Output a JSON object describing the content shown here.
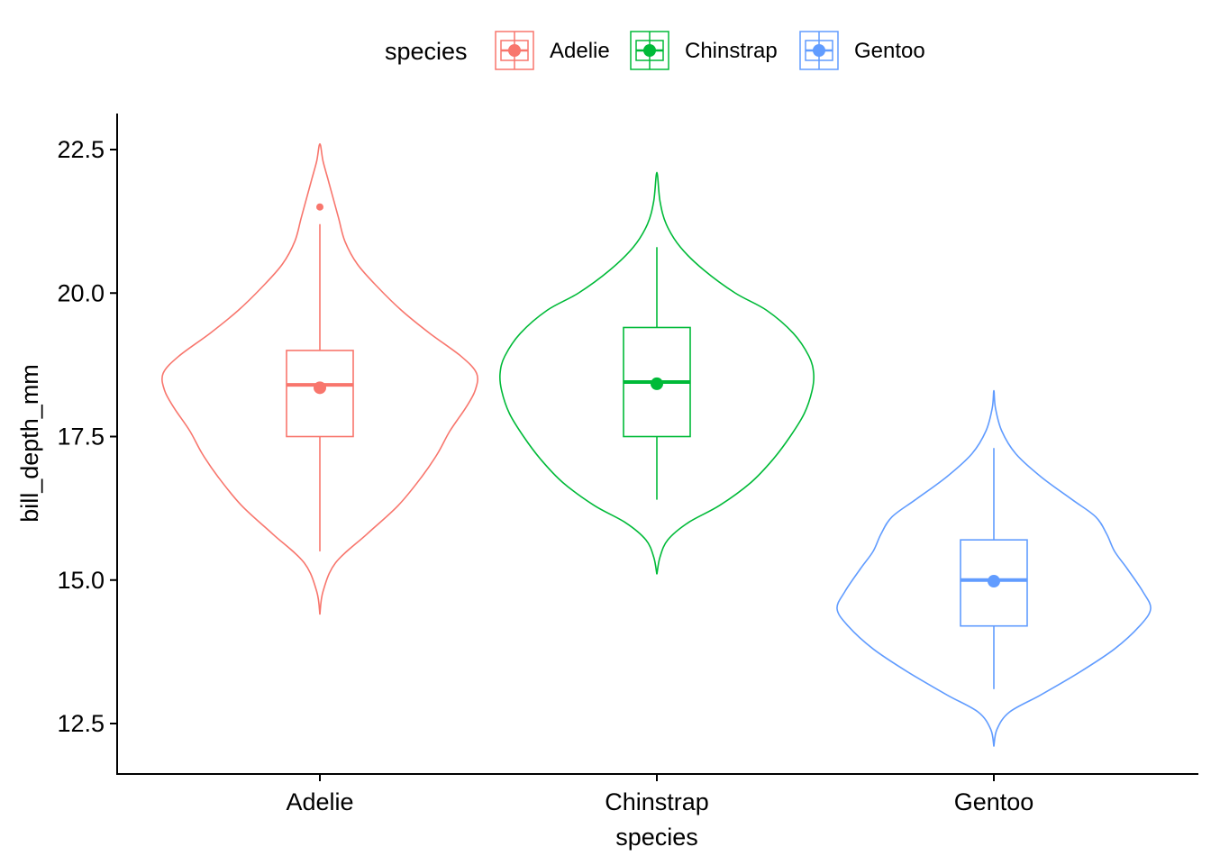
{
  "chart_data": {
    "type": "violin",
    "xlabel": "species",
    "ylabel": "bill_depth_mm",
    "ylim": [
      12.0,
      23.0
    ],
    "yticks": [
      12.5,
      15.0,
      17.5,
      20.0,
      22.5
    ],
    "ytick_labels": [
      "12.5",
      "15.0",
      "17.5",
      "20.0",
      "22.5"
    ],
    "categories": [
      "Adelie",
      "Chinstrap",
      "Gentoo"
    ],
    "legend": {
      "title": "species",
      "position": "top"
    },
    "grid": false,
    "series": [
      {
        "name": "Adelie",
        "color": "#F8766D",
        "violin_range": [
          14.4,
          22.6
        ],
        "density_profile": [
          [
            14.4,
            0.0
          ],
          [
            14.8,
            0.02
          ],
          [
            15.3,
            0.1
          ],
          [
            15.8,
            0.3
          ],
          [
            16.3,
            0.5
          ],
          [
            16.8,
            0.65
          ],
          [
            17.2,
            0.75
          ],
          [
            17.6,
            0.83
          ],
          [
            18.0,
            0.93
          ],
          [
            18.3,
            0.99
          ],
          [
            18.6,
            1.0
          ],
          [
            18.9,
            0.9
          ],
          [
            19.3,
            0.7
          ],
          [
            19.7,
            0.52
          ],
          [
            20.1,
            0.37
          ],
          [
            20.5,
            0.24
          ],
          [
            20.9,
            0.16
          ],
          [
            21.3,
            0.12
          ],
          [
            21.7,
            0.08
          ],
          [
            22.0,
            0.05
          ],
          [
            22.3,
            0.02
          ],
          [
            22.6,
            0.0
          ]
        ],
        "box": {
          "whisker_low": 15.5,
          "q1": 17.5,
          "median": 18.4,
          "q3": 19.0,
          "whisker_high": 21.2
        },
        "mean": 18.35,
        "outliers": [
          21.5
        ]
      },
      {
        "name": "Chinstrap",
        "color": "#00BA38",
        "violin_range": [
          15.1,
          22.1
        ],
        "density_profile": [
          [
            15.1,
            0.0
          ],
          [
            15.4,
            0.02
          ],
          [
            15.7,
            0.07
          ],
          [
            16.0,
            0.2
          ],
          [
            16.3,
            0.4
          ],
          [
            16.7,
            0.6
          ],
          [
            17.1,
            0.74
          ],
          [
            17.5,
            0.85
          ],
          [
            17.9,
            0.94
          ],
          [
            18.3,
            0.99
          ],
          [
            18.6,
            1.0
          ],
          [
            18.9,
            0.97
          ],
          [
            19.3,
            0.87
          ],
          [
            19.7,
            0.7
          ],
          [
            20.0,
            0.5
          ],
          [
            20.4,
            0.3
          ],
          [
            20.8,
            0.15
          ],
          [
            21.2,
            0.06
          ],
          [
            21.6,
            0.02
          ],
          [
            22.1,
            0.0
          ]
        ],
        "box": {
          "whisker_low": 16.4,
          "q1": 17.5,
          "median": 18.45,
          "q3": 19.4,
          "whisker_high": 20.8
        },
        "mean": 18.42,
        "outliers": []
      },
      {
        "name": "Gentoo",
        "color": "#619CFF",
        "violin_range": [
          12.1,
          18.3
        ],
        "density_profile": [
          [
            12.1,
            0.0
          ],
          [
            12.4,
            0.02
          ],
          [
            12.7,
            0.1
          ],
          [
            13.0,
            0.3
          ],
          [
            13.4,
            0.55
          ],
          [
            13.8,
            0.77
          ],
          [
            14.2,
            0.93
          ],
          [
            14.5,
            1.0
          ],
          [
            14.8,
            0.95
          ],
          [
            15.2,
            0.85
          ],
          [
            15.5,
            0.77
          ],
          [
            15.8,
            0.72
          ],
          [
            16.1,
            0.65
          ],
          [
            16.4,
            0.5
          ],
          [
            16.8,
            0.3
          ],
          [
            17.2,
            0.14
          ],
          [
            17.6,
            0.05
          ],
          [
            18.0,
            0.01
          ],
          [
            18.3,
            0.0
          ]
        ],
        "box": {
          "whisker_low": 13.1,
          "q1": 14.2,
          "median": 15.0,
          "q3": 15.7,
          "whisker_high": 17.3
        },
        "mean": 14.98,
        "outliers": []
      }
    ]
  }
}
